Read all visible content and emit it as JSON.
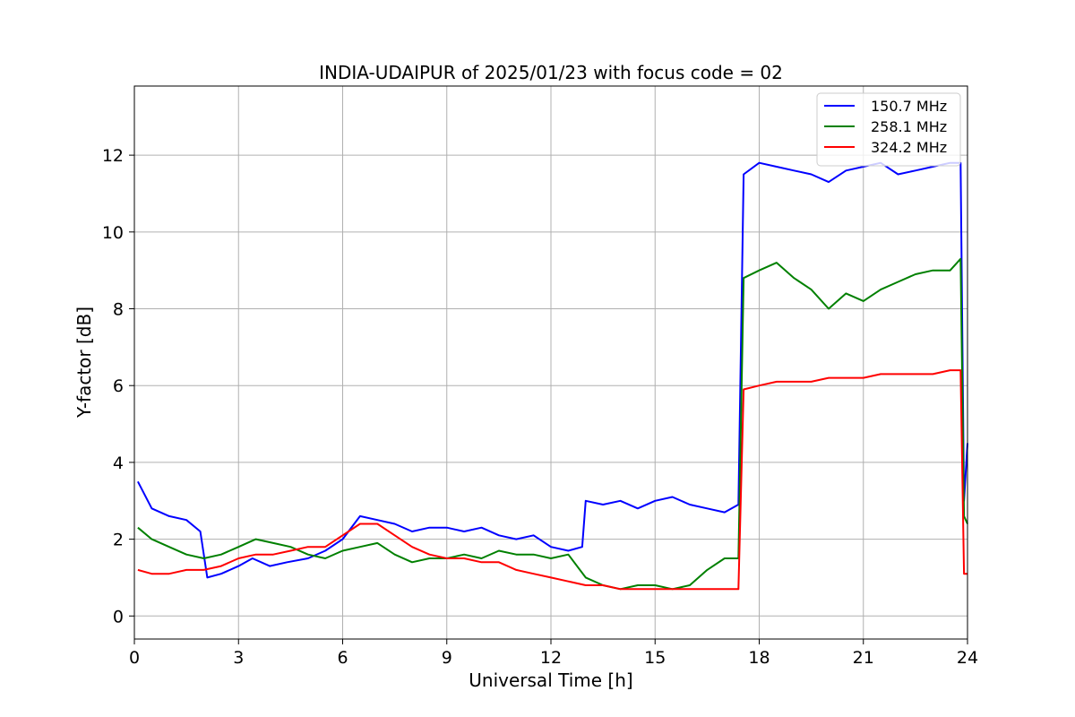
{
  "chart_data": {
    "type": "line",
    "title": "INDIA-UDAIPUR of 2025/01/23 with focus code = 02",
    "xlabel": "Universal Time [h]",
    "ylabel": "Y-factor [dB]",
    "xlim": [
      0,
      24
    ],
    "ylim": [
      -0.6,
      13.8
    ],
    "xticks": [
      0,
      3,
      6,
      9,
      12,
      15,
      18,
      21,
      24
    ],
    "yticks": [
      0,
      2,
      4,
      6,
      8,
      10,
      12
    ],
    "grid": true,
    "legend_position": "top-right",
    "series": [
      {
        "name": "150.7 MHz",
        "color": "#0000ff",
        "x": [
          0.1,
          0.5,
          1.0,
          1.5,
          1.9,
          2.1,
          2.5,
          3.0,
          3.4,
          3.9,
          4.4,
          5.0,
          5.5,
          6.0,
          6.5,
          7.0,
          7.5,
          8.0,
          8.5,
          9.0,
          9.5,
          10.0,
          10.5,
          11.0,
          11.5,
          12.0,
          12.5,
          12.9,
          13.0,
          13.5,
          14.0,
          14.5,
          15.0,
          15.5,
          16.0,
          16.5,
          17.0,
          17.4,
          17.55,
          18.0,
          18.5,
          19.0,
          19.5,
          20.0,
          20.5,
          21.0,
          21.5,
          22.0,
          22.5,
          23.0,
          23.5,
          23.8,
          23.9,
          24.0
        ],
        "y": [
          3.5,
          2.8,
          2.6,
          2.5,
          2.2,
          1.0,
          1.1,
          1.3,
          1.5,
          1.3,
          1.4,
          1.5,
          1.7,
          2.0,
          2.6,
          2.5,
          2.4,
          2.2,
          2.3,
          2.3,
          2.2,
          2.3,
          2.1,
          2.0,
          2.1,
          1.8,
          1.7,
          1.8,
          3.0,
          2.9,
          3.0,
          2.8,
          3.0,
          3.1,
          2.9,
          2.8,
          2.7,
          2.9,
          11.5,
          11.8,
          11.7,
          11.6,
          11.5,
          11.3,
          11.6,
          11.7,
          11.8,
          11.5,
          11.6,
          11.7,
          11.8,
          11.8,
          3.0,
          4.5
        ]
      },
      {
        "name": "258.1 MHz",
        "color": "#008000",
        "x": [
          0.1,
          0.5,
          1.0,
          1.5,
          2.0,
          2.5,
          3.0,
          3.5,
          4.0,
          4.5,
          5.0,
          5.5,
          6.0,
          6.5,
          7.0,
          7.5,
          8.0,
          8.5,
          9.0,
          9.5,
          10.0,
          10.5,
          11.0,
          11.5,
          12.0,
          12.5,
          13.0,
          13.5,
          14.0,
          14.5,
          15.0,
          15.5,
          16.0,
          16.5,
          17.0,
          17.4,
          17.55,
          18.0,
          18.5,
          19.0,
          19.5,
          20.0,
          20.5,
          21.0,
          21.5,
          22.0,
          22.5,
          23.0,
          23.5,
          23.8,
          23.9,
          24.0
        ],
        "y": [
          2.3,
          2.0,
          1.8,
          1.6,
          1.5,
          1.6,
          1.8,
          2.0,
          1.9,
          1.8,
          1.6,
          1.5,
          1.7,
          1.8,
          1.9,
          1.6,
          1.4,
          1.5,
          1.5,
          1.6,
          1.5,
          1.7,
          1.6,
          1.6,
          1.5,
          1.6,
          1.0,
          0.8,
          0.7,
          0.8,
          0.8,
          0.7,
          0.8,
          1.2,
          1.5,
          1.5,
          8.8,
          9.0,
          9.2,
          8.8,
          8.5,
          8.0,
          8.4,
          8.2,
          8.5,
          8.7,
          8.9,
          9.0,
          9.0,
          9.3,
          2.6,
          2.4
        ]
      },
      {
        "name": "324.2 MHz",
        "color": "#ff0000",
        "x": [
          0.1,
          0.5,
          1.0,
          1.5,
          2.0,
          2.5,
          3.0,
          3.5,
          4.0,
          4.5,
          5.0,
          5.5,
          6.0,
          6.5,
          7.0,
          7.5,
          8.0,
          8.5,
          9.0,
          9.5,
          10.0,
          10.5,
          11.0,
          11.5,
          12.0,
          12.5,
          13.0,
          13.5,
          14.0,
          14.5,
          15.0,
          15.5,
          16.0,
          16.5,
          17.0,
          17.4,
          17.55,
          18.0,
          18.5,
          19.0,
          19.5,
          20.0,
          20.5,
          21.0,
          21.5,
          22.0,
          22.5,
          23.0,
          23.5,
          23.8,
          23.9,
          24.0
        ],
        "y": [
          1.2,
          1.1,
          1.1,
          1.2,
          1.2,
          1.3,
          1.5,
          1.6,
          1.6,
          1.7,
          1.8,
          1.8,
          2.1,
          2.4,
          2.4,
          2.1,
          1.8,
          1.6,
          1.5,
          1.5,
          1.4,
          1.4,
          1.2,
          1.1,
          1.0,
          0.9,
          0.8,
          0.8,
          0.7,
          0.7,
          0.7,
          0.7,
          0.7,
          0.7,
          0.7,
          0.7,
          5.9,
          6.0,
          6.1,
          6.1,
          6.1,
          6.2,
          6.2,
          6.2,
          6.3,
          6.3,
          6.3,
          6.3,
          6.4,
          6.4,
          1.1,
          1.1
        ]
      }
    ]
  }
}
